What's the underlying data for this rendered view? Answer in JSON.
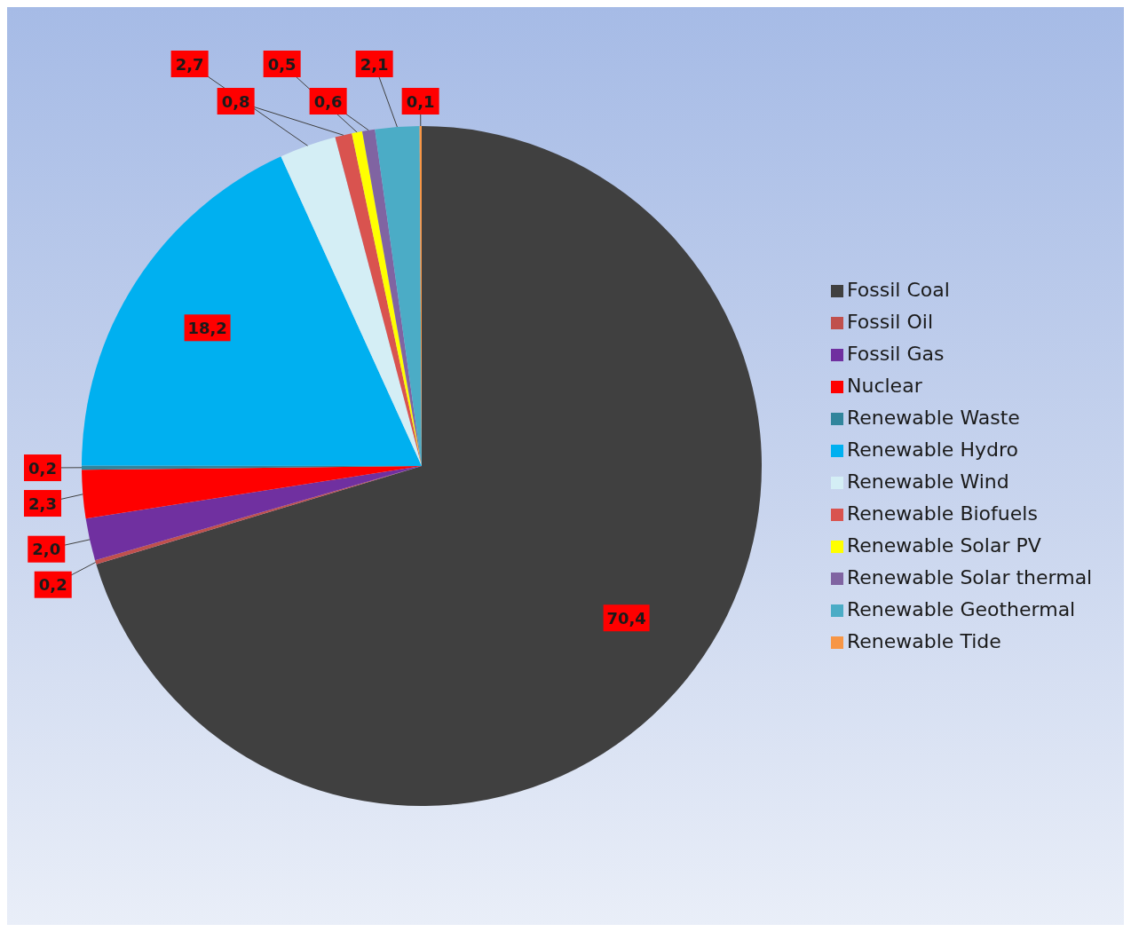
{
  "chart_data": {
    "type": "pie",
    "categories": [
      "Fossil Coal",
      "Fossil Oil",
      "Fossil Gas",
      "Nuclear",
      "Renewable Waste",
      "Renewable Hydro",
      "Renewable Wind",
      "Renewable Biofuels",
      "Renewable Solar PV",
      "Renewable Solar thermal",
      "Renewable Geothermal",
      "Renewable Tide"
    ],
    "values": [
      70.4,
      0.2,
      2.0,
      2.3,
      0.2,
      18.2,
      2.7,
      0.8,
      0.5,
      0.6,
      2.1,
      0.1
    ],
    "value_labels": [
      "70,4",
      "0,2",
      "2,0",
      "2,3",
      "0,2",
      "18,2",
      "2,7",
      "0,8",
      "0,5",
      "0,6",
      "2,1",
      "0,1"
    ],
    "colors": [
      "#404040",
      "#c0504d",
      "#7030a0",
      "#ff0000",
      "#31859c",
      "#00b0f0",
      "#d4eef5",
      "#d9534f",
      "#ffff00",
      "#8064a2",
      "#4bacc6",
      "#f79646"
    ],
    "legend": "right"
  }
}
